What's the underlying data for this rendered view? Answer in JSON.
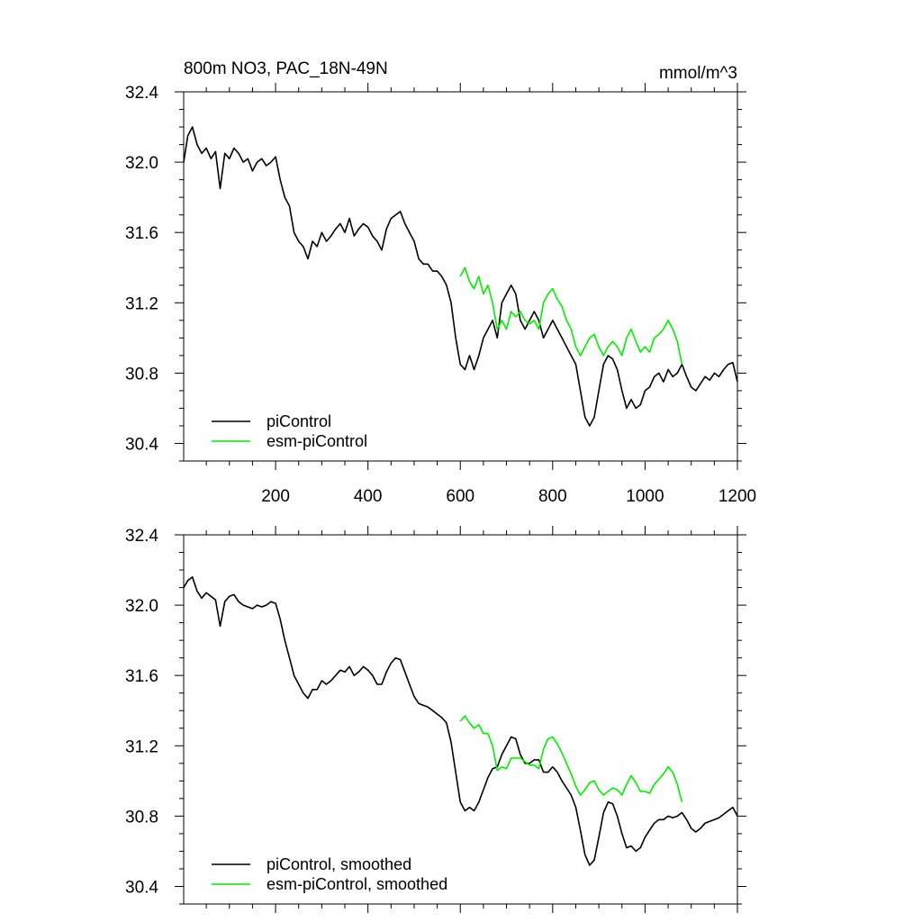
{
  "chart_data": [
    {
      "type": "line",
      "title": "800m NO3, PAC_18N-49N",
      "unit_label": "mmol/m^3",
      "xlabel": "",
      "ylabel": "",
      "xlim": [
        1,
        1200
      ],
      "ylim": [
        30.3,
        32.4
      ],
      "x_ticks": [
        200,
        400,
        600,
        800,
        1000,
        1200
      ],
      "x_tick_labels": [
        "200",
        "400",
        "600",
        "800",
        "1000",
        "1200"
      ],
      "y_ticks": [
        30.4,
        30.8,
        31.2,
        31.6,
        32.0,
        32.4
      ],
      "y_tick_labels": [
        "30.4",
        "30.8",
        "31.2",
        "31.6",
        "32.0",
        "32.4"
      ],
      "grid": false,
      "legend_position": "bottom-left",
      "series": [
        {
          "name": "piControl",
          "color": "#000000",
          "x": [
            1,
            10,
            20,
            30,
            40,
            50,
            60,
            70,
            80,
            90,
            100,
            110,
            120,
            130,
            140,
            150,
            160,
            170,
            180,
            190,
            200,
            210,
            220,
            230,
            240,
            250,
            260,
            270,
            280,
            290,
            300,
            310,
            320,
            330,
            340,
            350,
            360,
            370,
            380,
            390,
            400,
            410,
            420,
            430,
            440,
            450,
            460,
            470,
            480,
            490,
            500,
            510,
            520,
            530,
            540,
            550,
            560,
            570,
            580,
            590,
            600,
            610,
            620,
            630,
            640,
            650,
            660,
            670,
            680,
            690,
            700,
            710,
            720,
            730,
            740,
            750,
            760,
            770,
            780,
            790,
            800,
            810,
            820,
            830,
            840,
            850,
            860,
            870,
            880,
            890,
            900,
            910,
            920,
            930,
            940,
            950,
            960,
            970,
            980,
            990,
            1000,
            1010,
            1020,
            1030,
            1040,
            1050,
            1060,
            1070,
            1080,
            1090,
            1100,
            1110,
            1120,
            1130,
            1140,
            1150,
            1160,
            1170,
            1180,
            1190,
            1200
          ],
          "values": [
            32.0,
            32.15,
            32.2,
            32.1,
            32.05,
            32.08,
            32.02,
            32.06,
            31.85,
            32.05,
            32.02,
            32.08,
            32.05,
            32.0,
            32.02,
            31.95,
            32.0,
            32.02,
            31.98,
            32.0,
            32.03,
            31.9,
            31.8,
            31.75,
            31.6,
            31.55,
            31.52,
            31.45,
            31.55,
            31.52,
            31.6,
            31.55,
            31.58,
            31.62,
            31.65,
            31.6,
            31.68,
            31.58,
            31.62,
            31.65,
            31.63,
            31.58,
            31.55,
            31.5,
            31.62,
            31.68,
            31.7,
            31.72,
            31.65,
            31.6,
            31.55,
            31.45,
            31.42,
            31.42,
            31.38,
            31.38,
            31.35,
            31.3,
            31.2,
            31.0,
            30.85,
            30.82,
            30.9,
            30.82,
            30.9,
            31.0,
            31.05,
            31.1,
            31.0,
            31.2,
            31.25,
            31.3,
            31.25,
            31.1,
            31.05,
            31.1,
            31.15,
            31.1,
            31.0,
            31.05,
            31.1,
            31.05,
            31.0,
            30.95,
            30.9,
            30.85,
            30.7,
            30.55,
            30.5,
            30.55,
            30.7,
            30.85,
            30.9,
            30.88,
            30.82,
            30.7,
            30.6,
            30.65,
            30.6,
            30.62,
            30.7,
            30.72,
            30.78,
            30.8,
            30.75,
            30.82,
            30.78,
            30.8,
            30.85,
            30.78,
            30.72,
            30.7,
            30.74,
            30.78,
            30.76,
            30.8,
            30.78,
            30.82,
            30.85,
            30.86,
            30.75
          ]
        },
        {
          "name": "esm-piControl",
          "color": "#00ee00",
          "x": [
            600,
            610,
            620,
            630,
            640,
            650,
            660,
            670,
            680,
            690,
            700,
            710,
            720,
            730,
            740,
            750,
            760,
            770,
            780,
            790,
            800,
            810,
            820,
            830,
            840,
            850,
            860,
            870,
            880,
            890,
            900,
            910,
            920,
            930,
            940,
            950,
            960,
            970,
            980,
            990,
            1000,
            1010,
            1020,
            1030,
            1040,
            1050,
            1060,
            1070,
            1080
          ],
          "values": [
            31.35,
            31.4,
            31.32,
            31.28,
            31.35,
            31.25,
            31.3,
            31.2,
            31.05,
            31.1,
            31.05,
            31.15,
            31.12,
            31.15,
            31.1,
            31.08,
            31.1,
            31.05,
            31.2,
            31.25,
            31.28,
            31.22,
            31.18,
            31.1,
            31.05,
            30.95,
            30.9,
            30.95,
            31.0,
            31.02,
            30.95,
            30.9,
            30.95,
            30.98,
            30.95,
            30.9,
            31.0,
            31.05,
            30.98,
            30.92,
            30.95,
            30.92,
            31.0,
            31.02,
            31.05,
            31.1,
            31.05,
            30.98,
            30.85
          ]
        }
      ],
      "legend_entries": [
        "piControl",
        "esm-piControl"
      ]
    },
    {
      "type": "line",
      "title": "",
      "xlabel": "",
      "ylabel": "",
      "xlim": [
        1,
        1200
      ],
      "ylim": [
        30.3,
        32.4
      ],
      "y_ticks": [
        30.4,
        30.8,
        31.2,
        31.6,
        32.0,
        32.4
      ],
      "y_tick_labels": [
        "30.4",
        "30.8",
        "31.2",
        "31.6",
        "32.0",
        "32.4"
      ],
      "grid": false,
      "legend_position": "bottom-left",
      "series": [
        {
          "name": "piControl, smoothed",
          "color": "#000000",
          "x": [
            1,
            10,
            20,
            30,
            40,
            50,
            60,
            70,
            80,
            90,
            100,
            110,
            120,
            130,
            140,
            150,
            160,
            170,
            180,
            190,
            200,
            210,
            220,
            230,
            240,
            250,
            260,
            270,
            280,
            290,
            300,
            310,
            320,
            330,
            340,
            350,
            360,
            370,
            380,
            390,
            400,
            410,
            420,
            430,
            440,
            450,
            460,
            470,
            480,
            490,
            500,
            510,
            520,
            530,
            540,
            550,
            560,
            570,
            580,
            590,
            600,
            610,
            620,
            630,
            640,
            650,
            660,
            670,
            680,
            690,
            700,
            710,
            720,
            730,
            740,
            750,
            760,
            770,
            780,
            790,
            800,
            810,
            820,
            830,
            840,
            850,
            860,
            870,
            880,
            890,
            900,
            910,
            920,
            930,
            940,
            950,
            960,
            970,
            980,
            990,
            1000,
            1010,
            1020,
            1030,
            1040,
            1050,
            1060,
            1070,
            1080,
            1090,
            1100,
            1110,
            1120,
            1130,
            1140,
            1150,
            1160,
            1170,
            1180,
            1190,
            1200
          ],
          "values": [
            32.1,
            32.14,
            32.16,
            32.08,
            32.04,
            32.07,
            32.05,
            32.03,
            31.88,
            32.02,
            32.05,
            32.06,
            32.02,
            32.0,
            31.99,
            31.98,
            32.0,
            31.99,
            32.0,
            32.02,
            32.01,
            31.92,
            31.8,
            31.7,
            31.6,
            31.55,
            31.5,
            31.47,
            31.52,
            31.52,
            31.57,
            31.55,
            31.57,
            31.6,
            31.63,
            31.62,
            31.65,
            31.6,
            31.62,
            31.65,
            31.63,
            31.6,
            31.55,
            31.55,
            31.62,
            31.67,
            31.7,
            31.69,
            31.62,
            31.55,
            31.48,
            31.44,
            31.43,
            31.42,
            31.4,
            31.38,
            31.36,
            31.33,
            31.22,
            31.05,
            30.88,
            30.83,
            30.85,
            30.83,
            30.88,
            30.95,
            31.02,
            31.07,
            31.08,
            31.15,
            31.2,
            31.25,
            31.24,
            31.15,
            31.1,
            31.1,
            31.12,
            31.12,
            31.05,
            31.05,
            31.08,
            31.05,
            31.0,
            30.96,
            30.92,
            30.85,
            30.72,
            30.58,
            30.52,
            30.55,
            30.68,
            30.82,
            30.88,
            30.87,
            30.8,
            30.7,
            30.62,
            30.63,
            30.6,
            30.62,
            30.68,
            30.72,
            30.76,
            30.78,
            30.78,
            30.8,
            30.79,
            30.8,
            30.82,
            30.78,
            30.73,
            30.71,
            30.73,
            30.76,
            30.77,
            30.78,
            30.79,
            30.81,
            30.83,
            30.85,
            30.8
          ]
        },
        {
          "name": "esm-piControl, smoothed",
          "color": "#00ee00",
          "x": [
            600,
            610,
            620,
            630,
            640,
            650,
            660,
            670,
            680,
            690,
            700,
            710,
            720,
            730,
            740,
            750,
            760,
            770,
            780,
            790,
            800,
            810,
            820,
            830,
            840,
            850,
            860,
            870,
            880,
            890,
            900,
            910,
            920,
            930,
            940,
            950,
            960,
            970,
            980,
            990,
            1000,
            1010,
            1020,
            1030,
            1040,
            1050,
            1060,
            1070,
            1080
          ],
          "values": [
            31.34,
            31.37,
            31.33,
            31.3,
            31.32,
            31.27,
            31.27,
            31.2,
            31.06,
            31.08,
            31.07,
            31.13,
            31.13,
            31.13,
            31.11,
            31.09,
            31.09,
            31.07,
            31.18,
            31.24,
            31.25,
            31.21,
            31.16,
            31.1,
            31.04,
            30.97,
            30.92,
            30.95,
            30.99,
            31.0,
            30.95,
            30.92,
            30.94,
            30.96,
            30.95,
            30.92,
            30.98,
            31.03,
            30.99,
            30.94,
            30.94,
            30.93,
            30.98,
            31.01,
            31.04,
            31.08,
            31.05,
            30.98,
            30.88
          ]
        }
      ],
      "legend_entries": [
        "piControl, smoothed",
        "esm-piControl, smoothed"
      ]
    }
  ]
}
